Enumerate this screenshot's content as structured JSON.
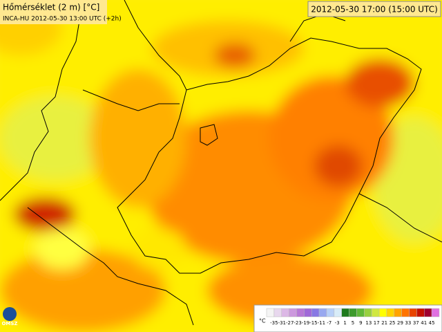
{
  "header": {
    "title": "Hőmérséklet (2 m) [°C]",
    "subtitle": "INCA-HU 2012-05-30 13:00 UTC (+2h)",
    "timestamp": "2012-05-30 17:00 (15:00 UTC)"
  },
  "logo": "OMSZ",
  "legend": {
    "unit": "°C",
    "labels": [
      -35,
      -31,
      -27,
      -23,
      -19,
      -15,
      -11,
      -7,
      -3,
      1,
      5,
      9,
      13,
      17,
      21,
      25,
      29,
      33,
      37,
      41,
      45
    ],
    "colors": [
      "#f4f4f4",
      "#e8d8ee",
      "#dcb8e6",
      "#cc98de",
      "#b878d6",
      "#a068d8",
      "#8878e4",
      "#98a8f0",
      "#b8d0f8",
      "#d8ecf8",
      "#1e7a1e",
      "#3c9a2c",
      "#60b838",
      "#98d040",
      "#d0e840",
      "#ffff00",
      "#ffd400",
      "#ffa400",
      "#ff7400",
      "#e84400",
      "#c41000",
      "#a00030",
      "#e070e0"
    ]
  }
}
